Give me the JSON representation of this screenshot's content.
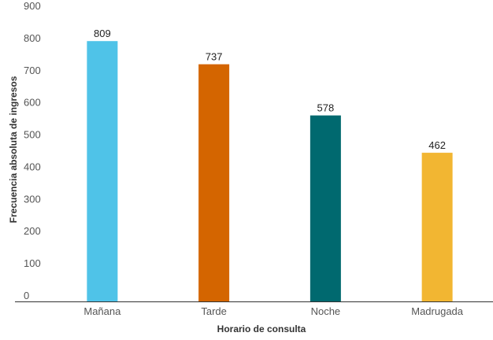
{
  "chart_data": {
    "type": "bar",
    "title": "",
    "xlabel": "Horario de consulta",
    "ylabel": "Frecuencia absoluta de ingresos",
    "categories": [
      "Mañana",
      "Tarde",
      "Noche",
      "Madrugada"
    ],
    "values": [
      809,
      737,
      578,
      462
    ],
    "data_labels": [
      "809",
      "737",
      "578",
      "462"
    ],
    "colors": [
      "#4fc3e8",
      "#d46500",
      "#00696f",
      "#f2b632"
    ],
    "ylim": [
      0,
      900
    ],
    "yticks": [
      0,
      100,
      200,
      300,
      400,
      500,
      600,
      700,
      800,
      900
    ],
    "ytick_labels": [
      "0",
      "100",
      "200",
      "300",
      "400",
      "500",
      "600",
      "700",
      "800",
      "900"
    ],
    "grid": false,
    "legend": "none",
    "axis_color": "#333333"
  }
}
